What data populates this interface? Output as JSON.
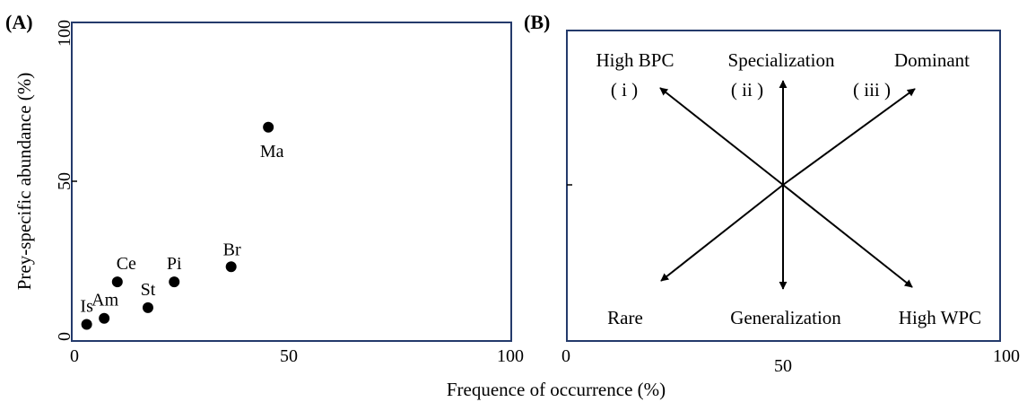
{
  "x_axis_title": "Frequence of occurrence (%)",
  "chart_data": [
    {
      "panel": "(A)",
      "type": "scatter",
      "xlabel": "",
      "ylabel": "Prey-specific abundance (%)",
      "xlim": [
        0,
        100
      ],
      "ylim": [
        0,
        100
      ],
      "xticks": [
        "0",
        "50",
        "100"
      ],
      "yticks": [
        "0",
        "50",
        "100"
      ],
      "points": [
        {
          "label": "Is",
          "x": 3,
          "y": 4
        },
        {
          "label": "Am",
          "x": 7,
          "y": 6
        },
        {
          "label": "Ce",
          "x": 10,
          "y": 18
        },
        {
          "label": "St",
          "x": 17,
          "y": 9.5
        },
        {
          "label": "Pi",
          "x": 23,
          "y": 18
        },
        {
          "label": "Br",
          "x": 36,
          "y": 23
        },
        {
          "label": "Ma",
          "x": 44.5,
          "y": 69
        }
      ]
    },
    {
      "panel": "(B)",
      "type": "diagram",
      "xlim": [
        0,
        100
      ],
      "xticks": [
        "0",
        "50",
        "100"
      ],
      "labels": {
        "top_left": "High BPC",
        "top_left_numeral": "( i )",
        "top_center": "Specialization",
        "top_center_numeral": "( ii )",
        "top_right": "Dominant",
        "top_right_numeral": "( iii )",
        "bottom_left": "Rare",
        "bottom_center": "Generalization",
        "bottom_right": "High WPC"
      }
    }
  ]
}
